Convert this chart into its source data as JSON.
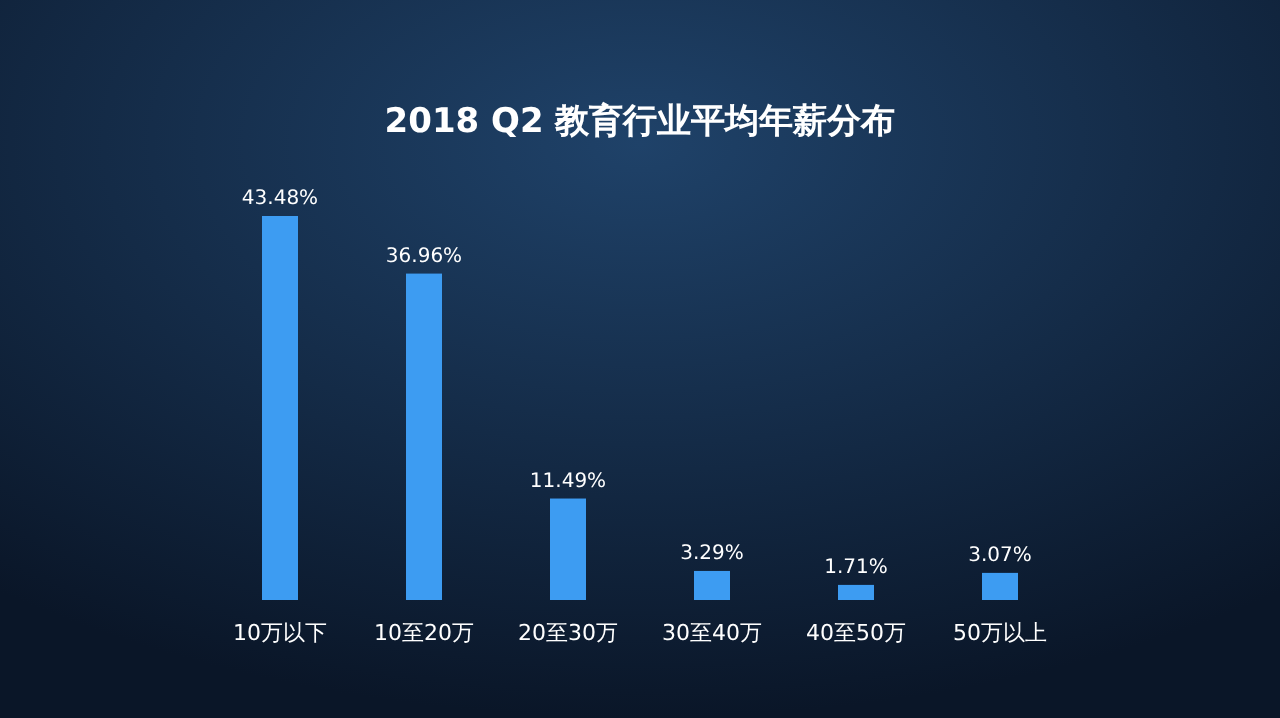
{
  "chart_data": {
    "type": "bar",
    "title": "2018 Q2 教育行业平均年薪分布",
    "categories": [
      "10万以下",
      "10至20万",
      "20至30万",
      "30至40万",
      "40至50万",
      "50万以上"
    ],
    "values": [
      43.48,
      36.96,
      11.49,
      3.29,
      1.71,
      3.07
    ],
    "value_labels": [
      "43.48%",
      "36.96%",
      "11.49%",
      "3.29%",
      "1.71%",
      "3.07%"
    ],
    "color": "#3d9cf2"
  }
}
